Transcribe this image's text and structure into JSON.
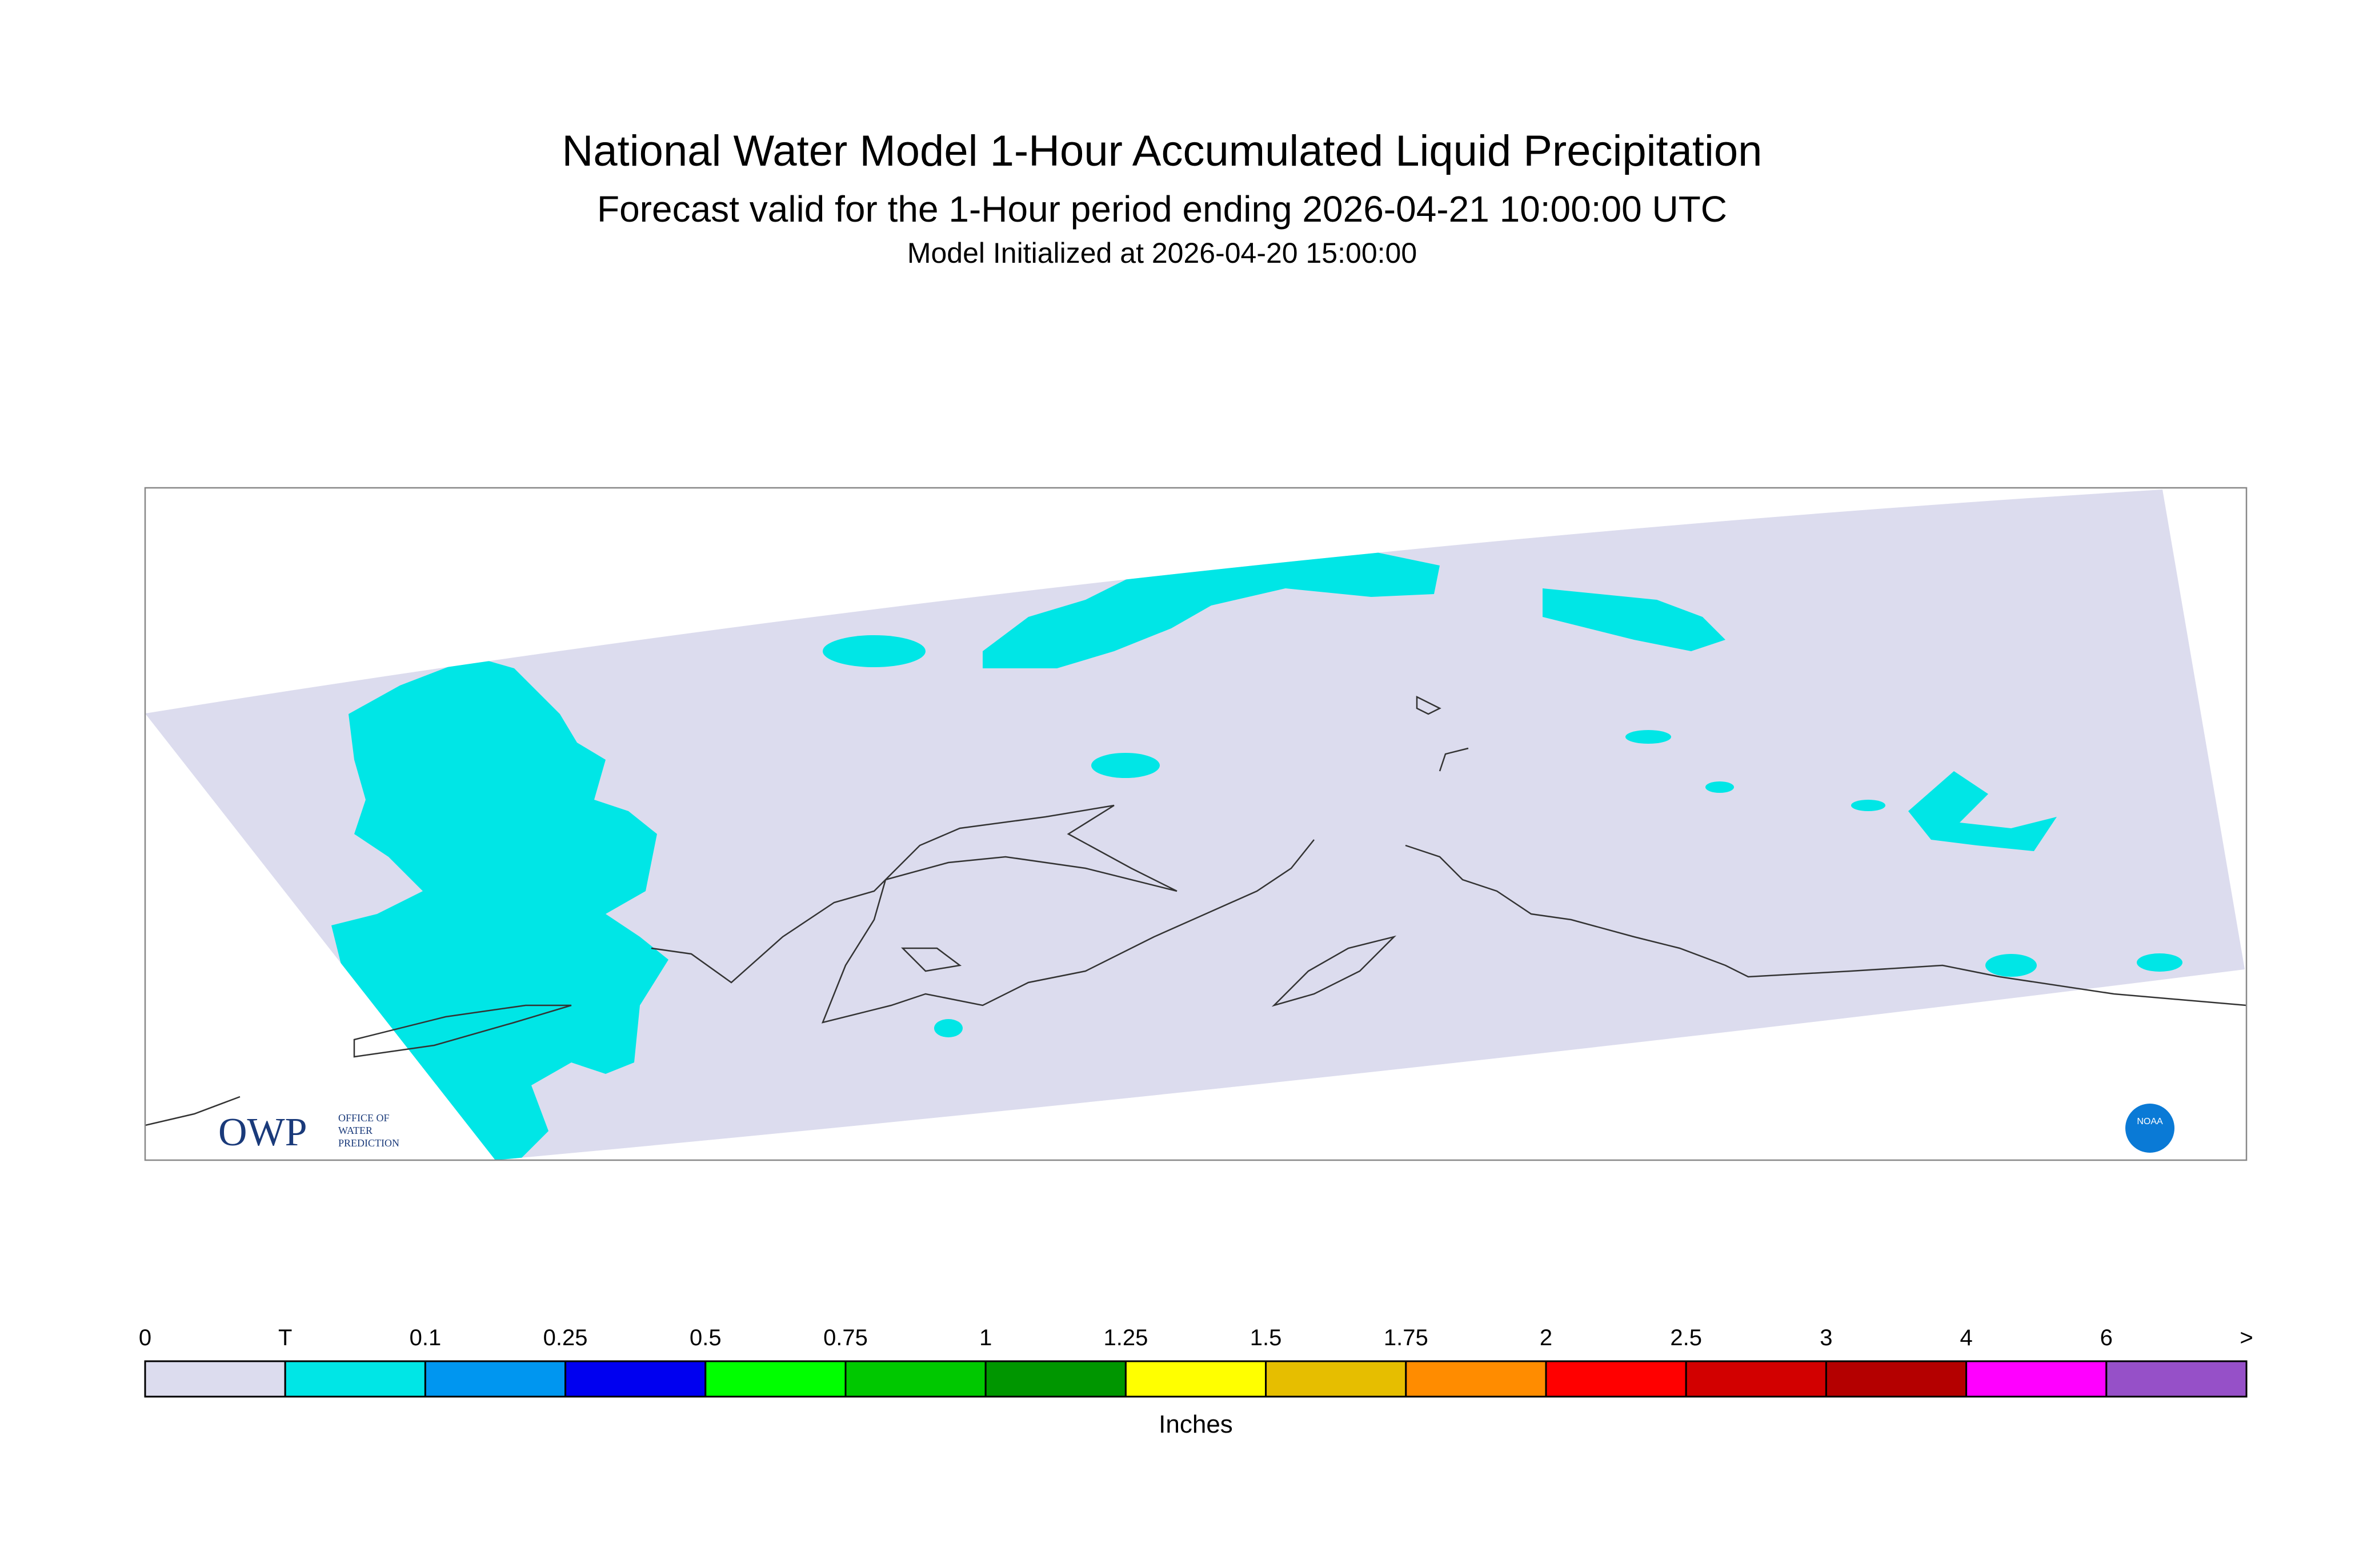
{
  "header": {
    "title": "National Water Model 1-Hour Accumulated Liquid Precipitation",
    "subtitle": "Forecast valid for the 1-Hour period ending 2026-04-21 10:00:00 UTC",
    "initialized": "Model Initialized at 2026-04-20 15:00:00"
  },
  "logos": {
    "owp": "OWP",
    "owp_line1": "OFFICE OF",
    "owp_line2": "WATER",
    "owp_line3": "PREDICTION",
    "noaa": "NOAA"
  },
  "legend": {
    "labels": [
      "0",
      "T",
      "0.1",
      "0.25",
      "0.5",
      "0.75",
      "1",
      "1.25",
      "1.5",
      "1.75",
      "2",
      "2.5",
      "3",
      "4",
      "6",
      ">"
    ],
    "colors": [
      "#dcdcee",
      "#00e6e6",
      "#0096f0",
      "#0000f0",
      "#00ff00",
      "#00c800",
      "#009600",
      "#ffff00",
      "#e6be00",
      "#ff8c00",
      "#ff0000",
      "#d20000",
      "#b40000",
      "#ff00ff",
      "#9650c8"
    ],
    "unit": "Inches"
  }
}
